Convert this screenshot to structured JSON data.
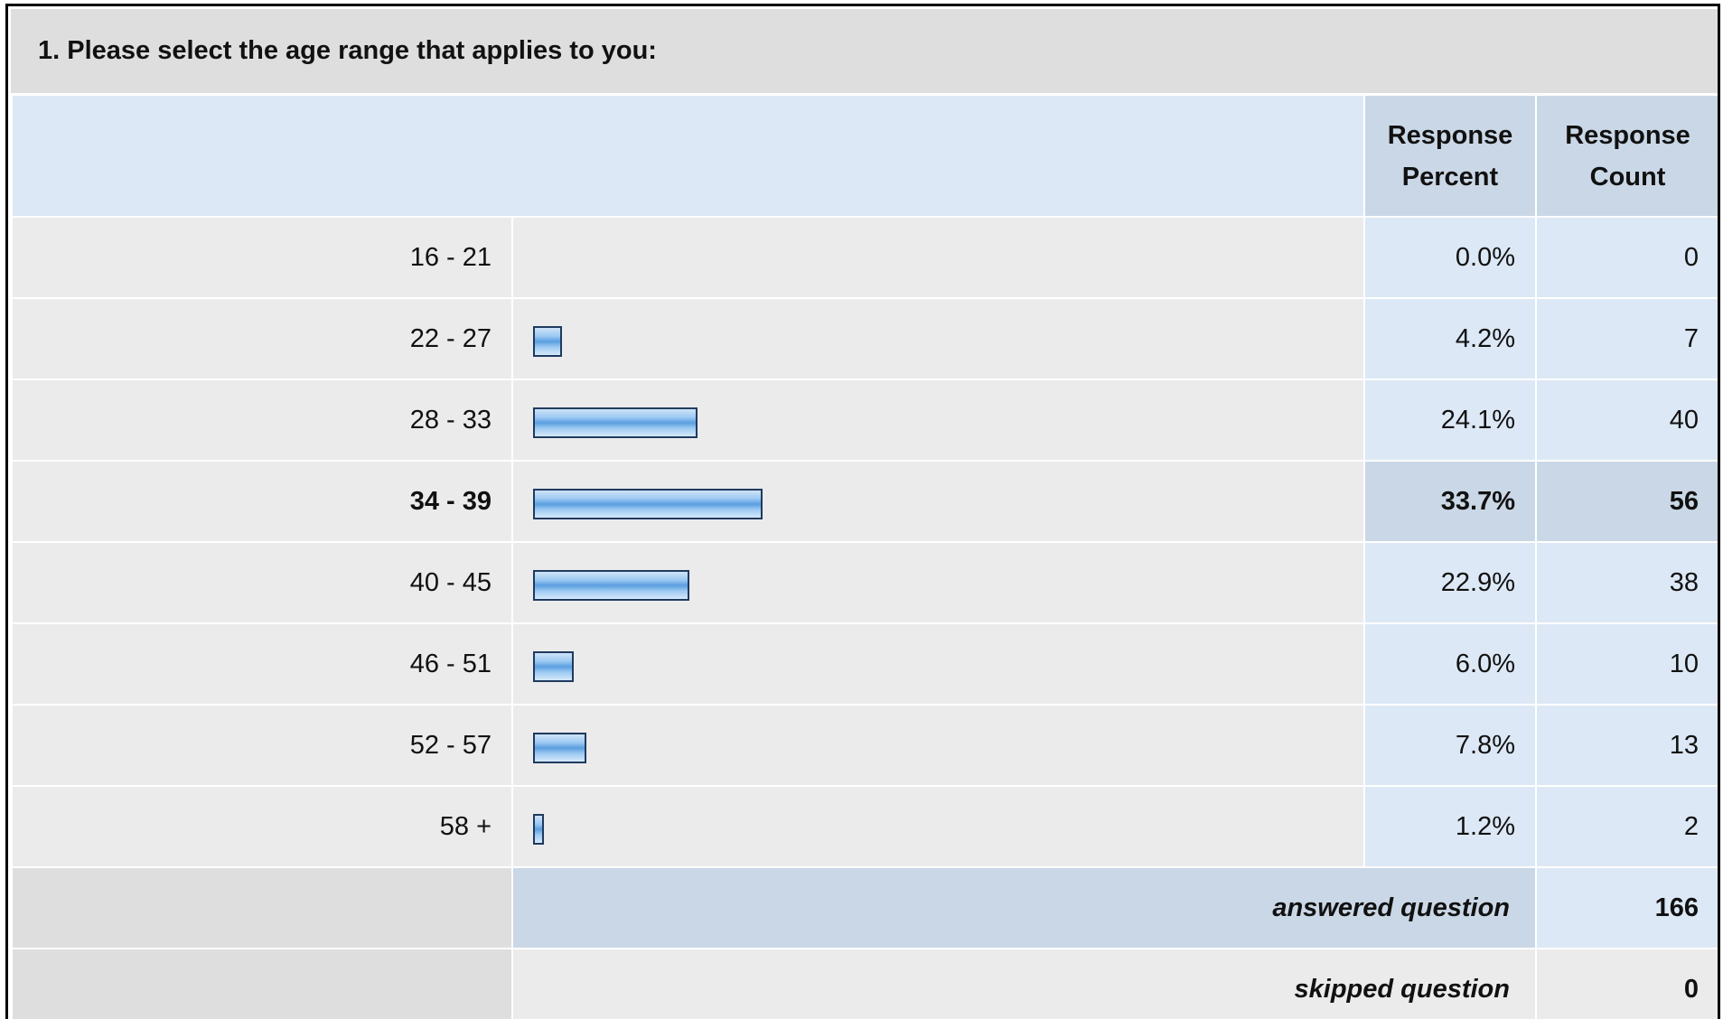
{
  "question": {
    "title": "1. Please select the age range that applies to you:"
  },
  "columns": {
    "percent_label": "Response Percent",
    "count_label": "Response Count"
  },
  "rows": [
    {
      "label": "16 - 21",
      "percent": "0.0%",
      "count": "0"
    },
    {
      "label": "22 - 27",
      "percent": "4.2%",
      "count": "7"
    },
    {
      "label": "28 - 33",
      "percent": "24.1%",
      "count": "40"
    },
    {
      "label": "34 - 39",
      "percent": "33.7%",
      "count": "56"
    },
    {
      "label": "40 - 45",
      "percent": "22.9%",
      "count": "38"
    },
    {
      "label": "46 - 51",
      "percent": "6.0%",
      "count": "10"
    },
    {
      "label": "52 - 57",
      "percent": "7.8%",
      "count": "13"
    },
    {
      "label": "58 +",
      "percent": "1.2%",
      "count": "2"
    }
  ],
  "summary": {
    "answered_label": "answered question",
    "answered_value": "166",
    "skipped_label": "skipped question",
    "skipped_value": "0"
  },
  "chart_data": {
    "type": "bar",
    "orientation": "horizontal",
    "categories": [
      "16 - 21",
      "22 - 27",
      "28 - 33",
      "34 - 39",
      "40 - 45",
      "46 - 51",
      "52 - 57",
      "58 +"
    ],
    "values": [
      0.0,
      4.2,
      24.1,
      33.7,
      22.9,
      6.0,
      7.8,
      1.2
    ],
    "counts": [
      0,
      7,
      40,
      56,
      38,
      10,
      13,
      2
    ],
    "highlighted_category": "34 - 39",
    "xlim": [
      0,
      100
    ],
    "bar_color": "#7fb6ea",
    "bar_border_color": "#1f3a5f"
  }
}
